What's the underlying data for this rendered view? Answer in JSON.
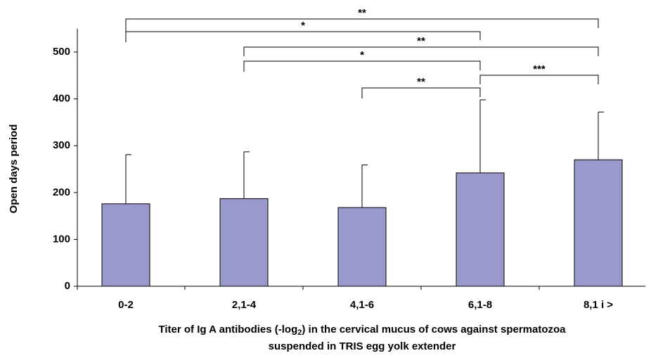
{
  "chart_data": {
    "type": "bar",
    "y_label": "Open days period",
    "x_label": [
      "Titer of Ig A antibodies (-log",
      "2",
      ") in the cervical mucus of cows against spermatozoa",
      "suspended in TRIS egg yolk extender"
    ],
    "categories": [
      "0-2",
      "2,1-4",
      "4,1-6",
      "6,1-8",
      "8,1 i >"
    ],
    "values": [
      176,
      187,
      168,
      242,
      270
    ],
    "errors": [
      105,
      100,
      91,
      156,
      102
    ],
    "color": "#9999cc",
    "ylim": [
      0,
      550
    ],
    "yticks": [
      0,
      100,
      200,
      300,
      400,
      500
    ],
    "annotations": [
      "**",
      "*",
      "**",
      "*",
      "***",
      "**"
    ]
  }
}
